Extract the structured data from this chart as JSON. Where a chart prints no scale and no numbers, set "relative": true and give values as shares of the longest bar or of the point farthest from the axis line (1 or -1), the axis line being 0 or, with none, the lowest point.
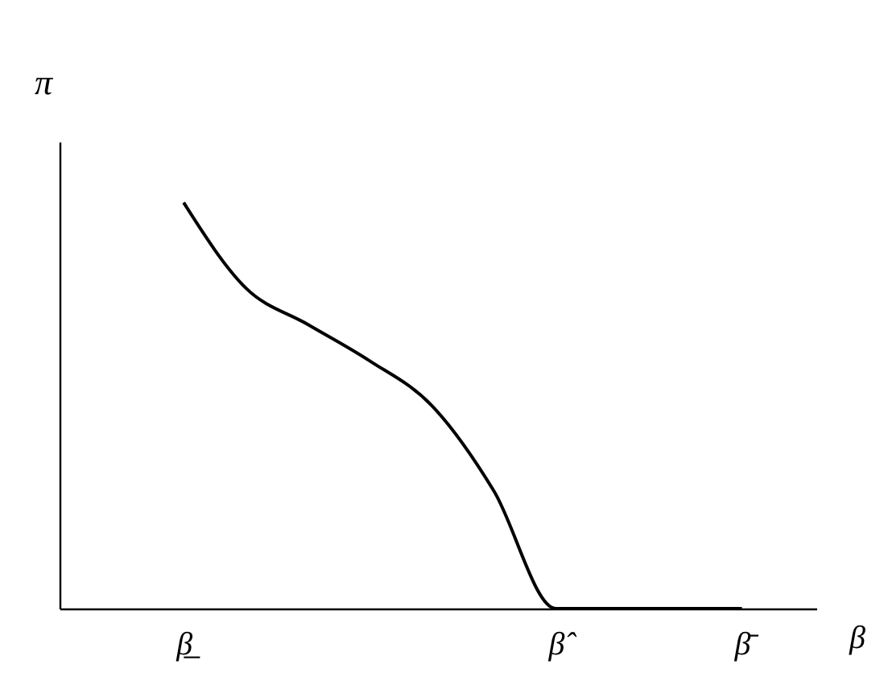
{
  "chart_data": {
    "type": "line",
    "relative": true,
    "xlabel": "β",
    "ylabel": "π",
    "categories": [
      "β̲",
      null,
      null,
      null,
      null,
      null,
      "β̂",
      null,
      null,
      "β̄"
    ],
    "series": [
      {
        "color": "#000000",
        "values": [
          1.0,
          0.79,
          0.7,
          0.61,
          0.5,
          0.29,
          0,
          0,
          0,
          0
        ]
      }
    ],
    "grid": false,
    "legend": false,
    "marker": "none",
    "line_style": "solid"
  }
}
